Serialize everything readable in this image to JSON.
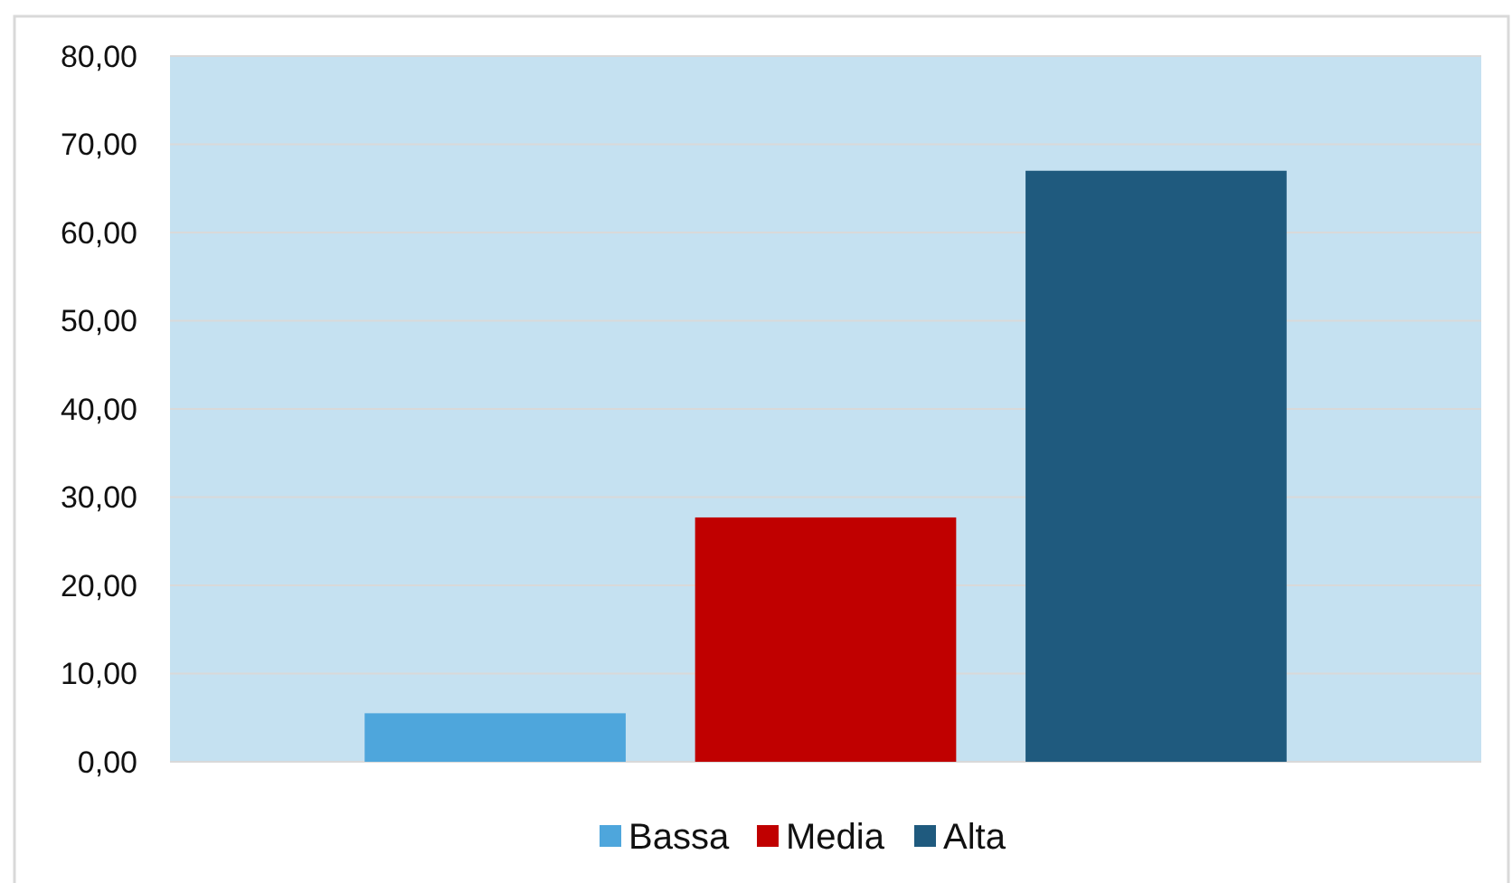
{
  "chart_data": {
    "type": "bar",
    "categories": [
      null
    ],
    "series": [
      {
        "name": "Bassa",
        "color": "#4ea6dc",
        "values": [
          5.5
        ]
      },
      {
        "name": "Media",
        "color": "#c00000",
        "values": [
          27.7
        ]
      },
      {
        "name": "Alta",
        "color": "#1f5a7e",
        "values": [
          67.0
        ]
      }
    ],
    "ylim": [
      0,
      80
    ],
    "yticks": [
      {
        "value": 0,
        "label": "0,00"
      },
      {
        "value": 10,
        "label": "10,00"
      },
      {
        "value": 20,
        "label": "20,00"
      },
      {
        "value": 30,
        "label": "30,00"
      },
      {
        "value": 40,
        "label": "40,00"
      },
      {
        "value": 50,
        "label": "50,00"
      },
      {
        "value": 60,
        "label": "60,00"
      },
      {
        "value": 70,
        "label": "70,00"
      },
      {
        "value": 80,
        "label": "80,00"
      }
    ],
    "grid": "y",
    "legend": "bottom"
  }
}
